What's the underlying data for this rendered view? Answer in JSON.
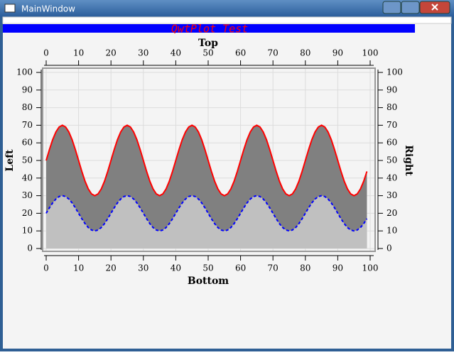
{
  "window": {
    "title": "MainWindow"
  },
  "chart_data": {
    "type": "area",
    "title": "QwtPlot Test",
    "xlabel": "Bottom",
    "x2label": "Top",
    "ylabel": "Left",
    "y2label": "Right",
    "x": [
      0,
      1,
      2,
      3,
      4,
      5,
      6,
      7,
      8,
      9,
      10,
      11,
      12,
      13,
      14,
      15,
      16,
      17,
      18,
      19,
      20,
      21,
      22,
      23,
      24,
      25,
      26,
      27,
      28,
      29,
      30,
      31,
      32,
      33,
      34,
      35,
      36,
      37,
      38,
      39,
      40,
      41,
      42,
      43,
      44,
      45,
      46,
      47,
      48,
      49,
      50,
      51,
      52,
      53,
      54,
      55,
      56,
      57,
      58,
      59,
      60,
      61,
      62,
      63,
      64,
      65,
      66,
      67,
      68,
      69,
      70,
      71,
      72,
      73,
      74,
      75,
      76,
      77,
      78,
      79,
      80,
      81,
      82,
      83,
      84,
      85,
      86,
      87,
      88,
      89,
      90,
      91,
      92,
      93,
      94,
      95,
      96,
      97,
      98,
      99
    ],
    "series": [
      {
        "color": "#ff0000",
        "fill": "#808080",
        "line_style": "solid",
        "values": [
          50,
          56.2,
          61.8,
          66.2,
          69,
          70,
          69,
          66.2,
          61.8,
          56.2,
          50,
          43.8,
          38.2,
          33.8,
          31,
          30,
          31,
          33.8,
          38.2,
          43.8,
          50,
          56.2,
          61.8,
          66.2,
          69,
          70,
          69,
          66.2,
          61.8,
          56.2,
          50,
          43.8,
          38.2,
          33.8,
          31,
          30,
          31,
          33.8,
          38.2,
          43.8,
          50,
          56.2,
          61.8,
          66.2,
          69,
          70,
          69,
          66.2,
          61.8,
          56.2,
          50,
          43.8,
          38.2,
          33.8,
          31,
          30,
          31,
          33.8,
          38.2,
          43.8,
          50,
          56.2,
          61.8,
          66.2,
          69,
          70,
          69,
          66.2,
          61.8,
          56.2,
          50,
          43.8,
          38.2,
          33.8,
          31,
          30,
          31,
          33.8,
          38.2,
          43.8,
          50,
          56.2,
          61.8,
          66.2,
          69,
          70,
          69,
          66.2,
          61.8,
          56.2,
          50,
          43.8,
          38.2,
          33.8,
          31,
          30,
          31,
          33.8,
          38.2,
          43.8
        ]
      },
      {
        "color": "#0000ff",
        "fill": "#c0c0c0",
        "line_style": "dashed",
        "values": [
          20,
          23.1,
          25.9,
          28.1,
          29.5,
          30,
          29.5,
          28.1,
          25.9,
          23.1,
          20,
          16.9,
          14.1,
          11.9,
          10.5,
          10,
          10.5,
          11.9,
          14.1,
          16.9,
          20,
          23.1,
          25.9,
          28.1,
          29.5,
          30,
          29.5,
          28.1,
          25.9,
          23.1,
          20,
          16.9,
          14.1,
          11.9,
          10.5,
          10,
          10.5,
          11.9,
          14.1,
          16.9,
          20,
          23.1,
          25.9,
          28.1,
          29.5,
          30,
          29.5,
          28.1,
          25.9,
          23.1,
          20,
          16.9,
          14.1,
          11.9,
          10.5,
          10,
          10.5,
          11.9,
          14.1,
          16.9,
          20,
          23.1,
          25.9,
          28.1,
          29.5,
          30,
          29.5,
          28.1,
          25.9,
          23.1,
          20,
          16.9,
          14.1,
          11.9,
          10.5,
          10,
          10.5,
          11.9,
          14.1,
          16.9,
          20,
          23.1,
          25.9,
          28.1,
          29.5,
          30,
          29.5,
          28.1,
          25.9,
          23.1,
          20,
          16.9,
          14.1,
          11.9,
          10.5,
          10,
          10.5,
          11.9,
          14.1,
          16.9
        ]
      }
    ],
    "xlim": [
      0,
      100
    ],
    "xticks": [
      0,
      10,
      20,
      30,
      40,
      50,
      60,
      70,
      80,
      90,
      100
    ],
    "x2lim": [
      0,
      100
    ],
    "x2ticks": [
      0,
      10,
      20,
      30,
      40,
      50,
      60,
      70,
      80,
      90,
      100
    ],
    "ylim": [
      0,
      100
    ],
    "yticks": [
      0,
      10,
      20,
      30,
      40,
      50,
      60,
      70,
      80,
      90,
      100
    ],
    "y2lim": [
      0,
      100
    ],
    "y2ticks": [
      0,
      10,
      20,
      30,
      40,
      50,
      60,
      70,
      80,
      90,
      100
    ],
    "grid": true
  }
}
